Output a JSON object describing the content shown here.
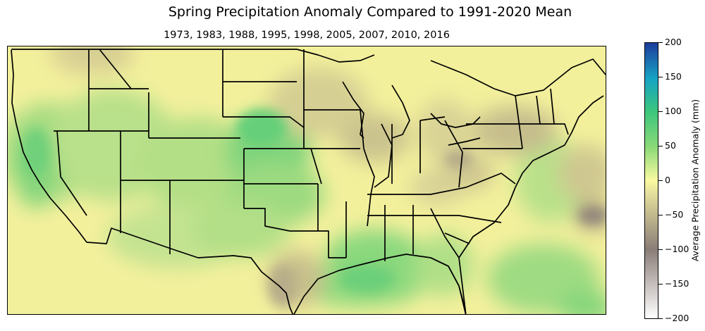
{
  "title": "Spring Precipitation Anomaly Compared to 1991-2020 Mean",
  "subtitle": "1973, 1983, 1988, 1995, 1998, 2005, 2007, 2010, 2016",
  "colorbar": {
    "label": "Average Precipitation Anomaly (mm)",
    "ticks": [
      "200",
      "150",
      "100",
      "50",
      "0",
      "−50",
      "−100",
      "−150",
      "−200"
    ],
    "range": [
      -200,
      200
    ],
    "colors": [
      "#ffffff",
      "#8a7d78",
      "#e3dd9b",
      "#fafaa0",
      "#8cd978",
      "#3cc67c",
      "#16a4c4",
      "#1d3c9c"
    ]
  },
  "map": {
    "region": "Contiguous United States",
    "colormap": "terrain-like (brown dry, yellow neutral, green/blue wet)"
  }
}
